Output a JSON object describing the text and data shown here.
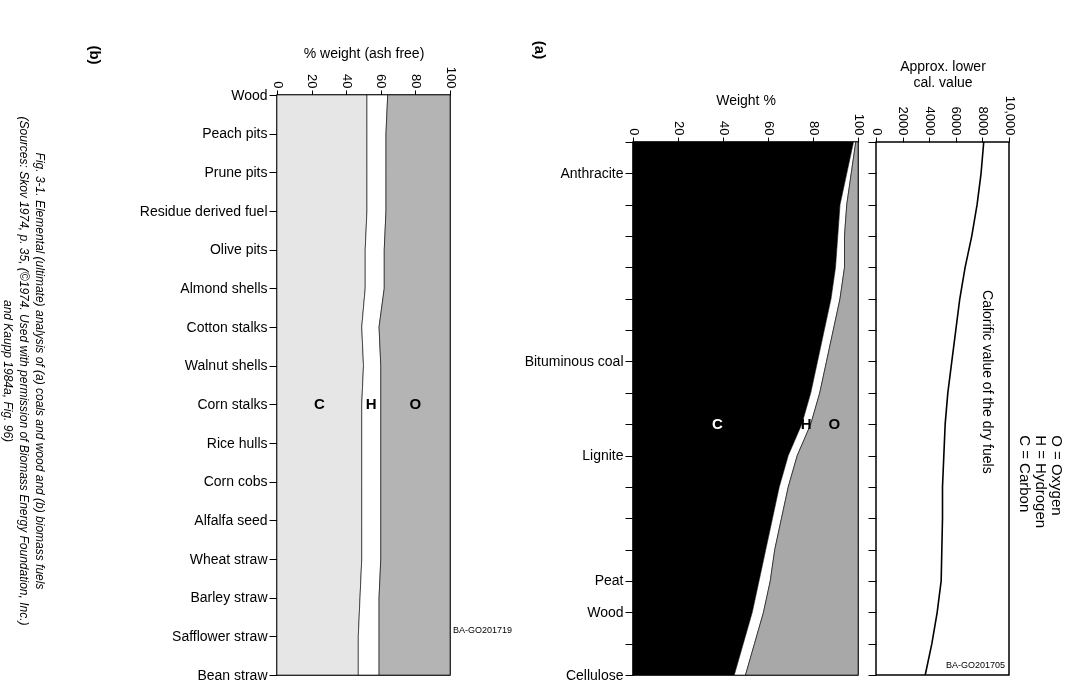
{
  "chart_data": [
    {
      "type": "area",
      "title": "(b)",
      "xlabel": "% weight (ash free)",
      "stacked": true,
      "orientation": "horizontal",
      "xlim": [
        0,
        100
      ],
      "xticks": [
        0,
        20,
        40,
        60,
        80,
        100
      ],
      "categories": [
        "Wood",
        "Peach pits",
        "Prune pits",
        "Residue derived fuel",
        "Olive pits",
        "Almond shells",
        "Cotton stalks",
        "Walnut shells",
        "Corn stalks",
        "Rice hulls",
        "Corn cobs",
        "Alfalfa seed",
        "Wheat straw",
        "Barley straw",
        "Safflower straw",
        "Bean straw"
      ],
      "series": [
        {
          "name": "C",
          "color": "#e6e6e6",
          "values": [
            52,
            52,
            52,
            52,
            51,
            51,
            49,
            50,
            49,
            49,
            49,
            49,
            49,
            48,
            47,
            47
          ]
        },
        {
          "name": "H",
          "color": "#ffffff",
          "values": [
            12,
            11,
            11,
            11,
            11,
            11,
            10,
            10,
            11,
            11,
            11,
            11,
            11,
            11,
            12,
            12
          ]
        },
        {
          "name": "O",
          "color": "#b4b4b4",
          "values": [
            36,
            37,
            37,
            37,
            38,
            38,
            41,
            40,
            40,
            40,
            40,
            40,
            40,
            41,
            41,
            41
          ]
        }
      ],
      "annotations": [
        "Fig. 3-1. Elemental (ultimate) analysis of (a) coals and wood and (b) biomass fuels (Sources: Skov 1974, p. 35, (©1974. Used with permission of Biomass Energy Foundation, Inc.) and Kaupp 1984a, Fig. 96)",
        "BA-GO201719"
      ]
    },
    {
      "type": "area",
      "title": "(a)",
      "xlabel": "Weight %",
      "stacked": true,
      "orientation": "horizontal",
      "xlim": [
        0,
        100
      ],
      "xticks": [
        0,
        20,
        40,
        60,
        80,
        100
      ],
      "categories": [
        null,
        "Anthracite",
        null,
        null,
        null,
        null,
        null,
        "Bituminous coal",
        null,
        null,
        "Lignite",
        null,
        null,
        null,
        "Peat",
        "Wood",
        null,
        "Cellulose"
      ],
      "series": [
        {
          "name": "C",
          "color": "#000000",
          "values": [
            98,
            95,
            92,
            91,
            90,
            88,
            85,
            82,
            79,
            75,
            69,
            65,
            62,
            59,
            56,
            53,
            49,
            45
          ]
        },
        {
          "name": "H",
          "color": "#ffffff",
          "values": [
            1,
            2,
            3,
            3,
            4,
            4,
            4,
            4,
            4,
            4,
            4,
            4,
            4,
            4,
            5,
            5,
            5,
            5
          ]
        },
        {
          "name": "O",
          "color": "#a8a8a8",
          "values": [
            1,
            3,
            5,
            6,
            6,
            8,
            11,
            14,
            17,
            21,
            27,
            31,
            34,
            37,
            39,
            42,
            46,
            50
          ]
        }
      ]
    },
    {
      "type": "line",
      "orientation": "horizontal",
      "xlabel": "Approx. lower cal. value",
      "ylabel": "Calorific value of the dry fuels",
      "xlim": [
        0,
        10000
      ],
      "xticks": [
        0,
        2000,
        4000,
        6000,
        8000,
        {
          "value": 10000,
          "label": "10,000"
        }
      ],
      "tick_labels": "x",
      "marker": "none",
      "categories": [
        null,
        null,
        null,
        null,
        null,
        null,
        null,
        null,
        null,
        null,
        null,
        null,
        null,
        null,
        null,
        null,
        null,
        null
      ],
      "series": [
        {
          "color": "#000000",
          "values": [
            8100,
            7900,
            7600,
            7200,
            6700,
            6300,
            6000,
            5700,
            5400,
            5200,
            5100,
            5000,
            5000,
            4950,
            4900,
            4600,
            4200,
            3700
          ]
        }
      ],
      "annotations": [
        "O = Oxygen",
        "H = Hydrogen",
        "C = Carbon",
        "BA-GO201705"
      ]
    }
  ]
}
